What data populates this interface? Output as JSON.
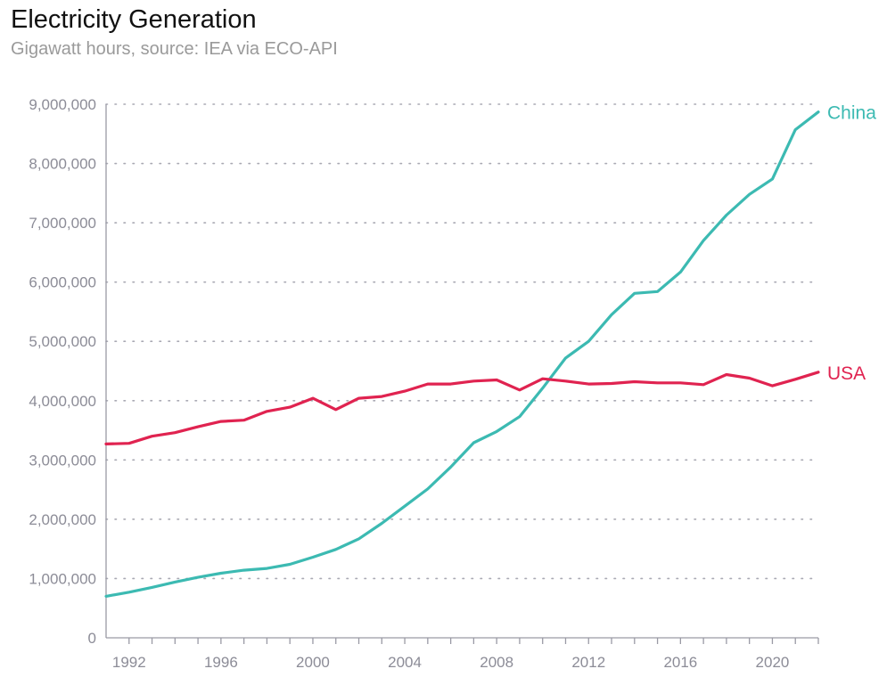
{
  "title": "Electricity Generation",
  "subtitle": "Gigawatt hours, source: IEA via ECO-API",
  "chart_data": {
    "type": "line",
    "title": "Electricity Generation",
    "subtitle": "Gigawatt hours, source: IEA via ECO-API",
    "xlim": [
      1991,
      2022
    ],
    "ylim": [
      0,
      9000000
    ],
    "x_ticks": [
      1992,
      1996,
      2000,
      2004,
      2008,
      2012,
      2016,
      2020
    ],
    "x_tick_labels": [
      "1992",
      "1996",
      "2000",
      "2004",
      "2008",
      "2012",
      "2016",
      "2020"
    ],
    "y_ticks": [
      0,
      1000000,
      2000000,
      3000000,
      4000000,
      5000000,
      6000000,
      7000000,
      8000000,
      9000000
    ],
    "y_tick_labels": [
      "0",
      "1,000,000",
      "2,000,000",
      "3,000,000",
      "4,000,000",
      "5,000,000",
      "6,000,000",
      "7,000,000",
      "8,000,000",
      "9,000,000"
    ],
    "grid": "horizontal-dotted",
    "legend": "inline-right",
    "x": [
      1991,
      1992,
      1993,
      1994,
      1995,
      1996,
      1997,
      1998,
      1999,
      2000,
      2001,
      2002,
      2003,
      2004,
      2005,
      2006,
      2007,
      2008,
      2009,
      2010,
      2011,
      2012,
      2013,
      2014,
      2015,
      2016,
      2017,
      2018,
      2019,
      2020,
      2021,
      2022
    ],
    "series": [
      {
        "name": "China",
        "color": "#3cbab2",
        "values": [
          700000,
          770000,
          850000,
          940000,
          1020000,
          1090000,
          1140000,
          1170000,
          1240000,
          1360000,
          1490000,
          1670000,
          1930000,
          2220000,
          2510000,
          2880000,
          3290000,
          3480000,
          3730000,
          4210000,
          4720000,
          5000000,
          5450000,
          5810000,
          5840000,
          6170000,
          6700000,
          7130000,
          7480000,
          7740000,
          8570000,
          8870000
        ]
      },
      {
        "name": "USA",
        "color": "#e02350",
        "values": [
          3270000,
          3280000,
          3400000,
          3460000,
          3560000,
          3650000,
          3670000,
          3820000,
          3890000,
          4040000,
          3850000,
          4040000,
          4070000,
          4160000,
          4280000,
          4280000,
          4330000,
          4350000,
          4180000,
          4370000,
          4330000,
          4280000,
          4290000,
          4320000,
          4300000,
          4300000,
          4270000,
          4440000,
          4380000,
          4250000,
          4360000,
          4480000
        ]
      }
    ]
  }
}
